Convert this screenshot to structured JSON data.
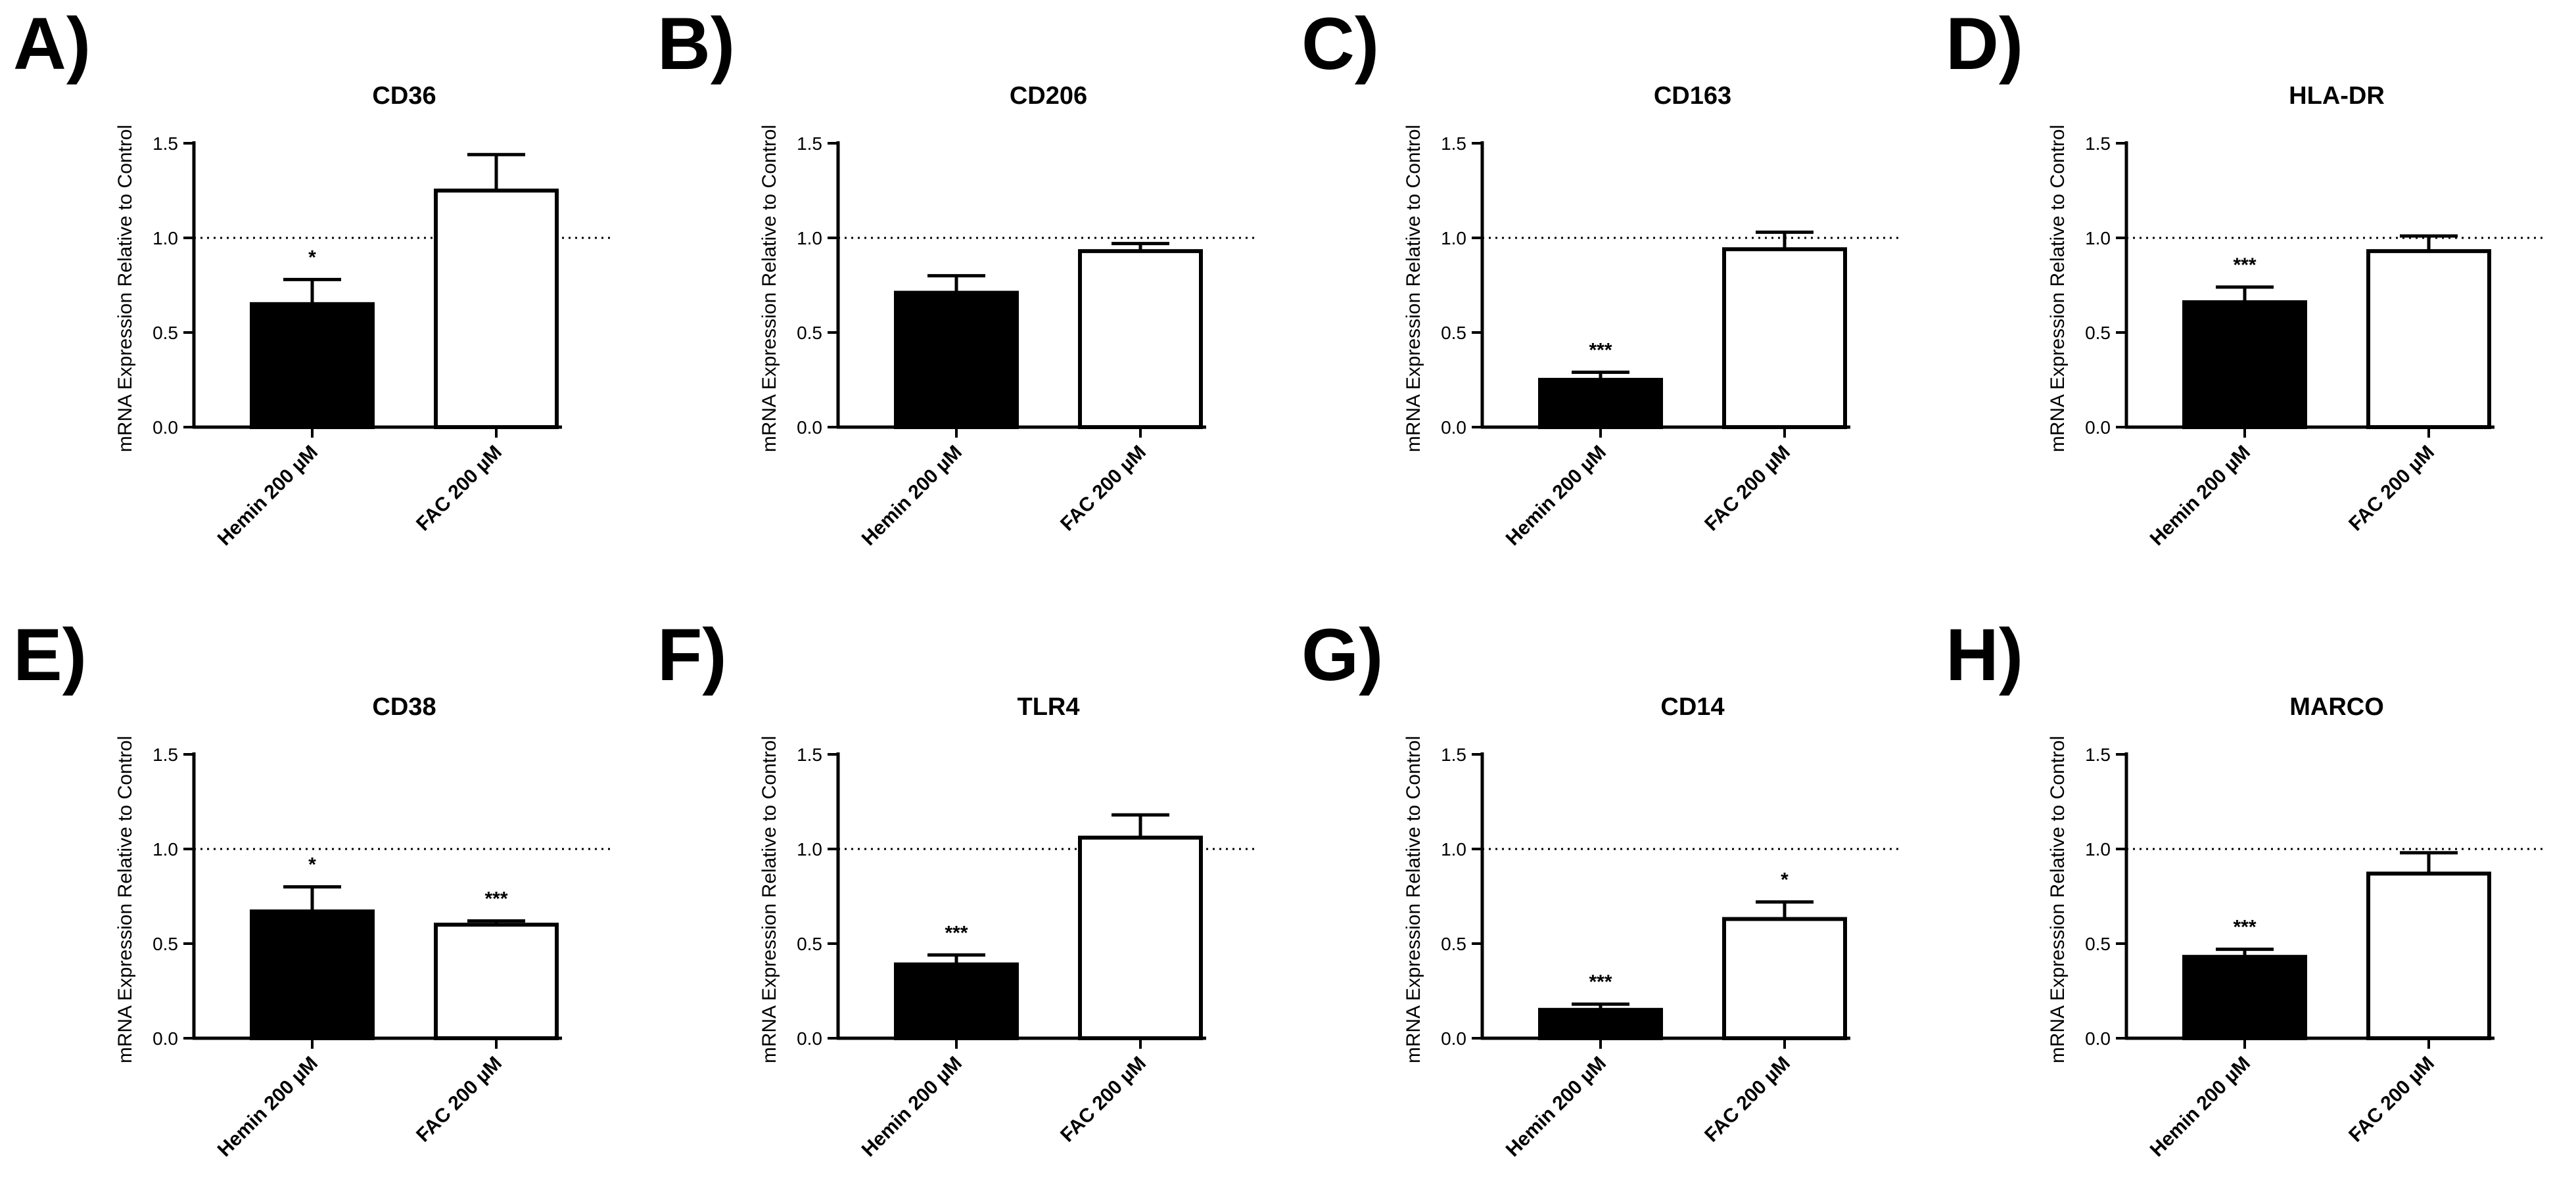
{
  "figure": {
    "panel_labels": [
      "A)",
      "B)",
      "C)",
      "D)",
      "E)",
      "F)",
      "G)",
      "H)"
    ]
  },
  "chart_data": [
    {
      "type": "bar",
      "panel": "A)",
      "title": "CD36",
      "xlabel": "",
      "ylabel": "mRNA Expression Relative to Control",
      "categories": [
        "Hemin 200 µM",
        "FAC 200 µM"
      ],
      "values": [
        0.65,
        1.25
      ],
      "errors": [
        0.13,
        0.19
      ],
      "significance": [
        "*",
        ""
      ],
      "bar_fills": [
        "#000000",
        "#ffffff"
      ],
      "reference_line": 1.0,
      "ylim": [
        0,
        1.5
      ],
      "yticks": [
        "0.0",
        "0.5",
        "1.0",
        "1.5"
      ]
    },
    {
      "type": "bar",
      "panel": "B)",
      "title": "CD206",
      "xlabel": "",
      "ylabel": "mRNA Expression Relative to Control",
      "categories": [
        "Hemin 200 µM",
        "FAC 200 µM"
      ],
      "values": [
        0.71,
        0.93
      ],
      "errors": [
        0.09,
        0.04
      ],
      "significance": [
        "",
        ""
      ],
      "bar_fills": [
        "#000000",
        "#ffffff"
      ],
      "reference_line": 1.0,
      "ylim": [
        0,
        1.5
      ],
      "yticks": [
        "0.0",
        "0.5",
        "1.0",
        "1.5"
      ]
    },
    {
      "type": "bar",
      "panel": "C)",
      "title": "CD163",
      "xlabel": "",
      "ylabel": "mRNA Expression Relative to Control",
      "categories": [
        "Hemin 200 µM",
        "FAC 200 µM"
      ],
      "values": [
        0.25,
        0.94
      ],
      "errors": [
        0.04,
        0.09
      ],
      "significance": [
        "***",
        ""
      ],
      "bar_fills": [
        "#000000",
        "#ffffff"
      ],
      "reference_line": 1.0,
      "ylim": [
        0,
        1.5
      ],
      "yticks": [
        "0.0",
        "0.5",
        "1.0",
        "1.5"
      ]
    },
    {
      "type": "bar",
      "panel": "D)",
      "title": "HLA-DR",
      "xlabel": "",
      "ylabel": "mRNA Expression Relative to Control",
      "categories": [
        "Hemin 200 µM",
        "FAC 200 µM"
      ],
      "values": [
        0.66,
        0.93
      ],
      "errors": [
        0.08,
        0.08
      ],
      "significance": [
        "***",
        ""
      ],
      "bar_fills": [
        "#000000",
        "#ffffff"
      ],
      "reference_line": 1.0,
      "ylim": [
        0,
        1.5
      ],
      "yticks": [
        "0.0",
        "0.5",
        "1.0",
        "1.5"
      ]
    },
    {
      "type": "bar",
      "panel": "E)",
      "title": "CD38",
      "xlabel": "",
      "ylabel": "mRNA Expression Relative to Control",
      "categories": [
        "Hemin 200 µM",
        "FAC 200 µM"
      ],
      "values": [
        0.67,
        0.6
      ],
      "errors": [
        0.13,
        0.02
      ],
      "significance": [
        "*",
        "***"
      ],
      "bar_fills": [
        "#000000",
        "#ffffff"
      ],
      "reference_line": 1.0,
      "ylim": [
        0,
        1.5
      ],
      "yticks": [
        "0.0",
        "0.5",
        "1.0",
        "1.5"
      ]
    },
    {
      "type": "bar",
      "panel": "F)",
      "title": "TLR4",
      "xlabel": "",
      "ylabel": "mRNA Expression Relative to Control",
      "categories": [
        "Hemin 200 µM",
        "FAC 200 µM"
      ],
      "values": [
        0.39,
        1.06
      ],
      "errors": [
        0.05,
        0.12
      ],
      "significance": [
        "***",
        ""
      ],
      "bar_fills": [
        "#000000",
        "#ffffff"
      ],
      "reference_line": 1.0,
      "ylim": [
        0,
        1.5
      ],
      "yticks": [
        "0.0",
        "0.5",
        "1.0",
        "1.5"
      ]
    },
    {
      "type": "bar",
      "panel": "G)",
      "title": "CD14",
      "xlabel": "",
      "ylabel": "mRNA Expression Relative to Control",
      "categories": [
        "Hemin 200 µM",
        "FAC 200 µM"
      ],
      "values": [
        0.15,
        0.63
      ],
      "errors": [
        0.03,
        0.09
      ],
      "significance": [
        "***",
        "*"
      ],
      "bar_fills": [
        "#000000",
        "#ffffff"
      ],
      "reference_line": 1.0,
      "ylim": [
        0,
        1.5
      ],
      "yticks": [
        "0.0",
        "0.5",
        "1.0",
        "1.5"
      ]
    },
    {
      "type": "bar",
      "panel": "H)",
      "title": "MARCO",
      "xlabel": "",
      "ylabel": "mRNA Expression Relative to Control",
      "categories": [
        "Hemin 200 µM",
        "FAC 200 µM"
      ],
      "values": [
        0.43,
        0.87
      ],
      "errors": [
        0.04,
        0.11
      ],
      "significance": [
        "***",
        ""
      ],
      "bar_fills": [
        "#000000",
        "#ffffff"
      ],
      "reference_line": 1.0,
      "ylim": [
        0,
        1.5
      ],
      "yticks": [
        "0.0",
        "0.5",
        "1.0",
        "1.5"
      ]
    }
  ]
}
